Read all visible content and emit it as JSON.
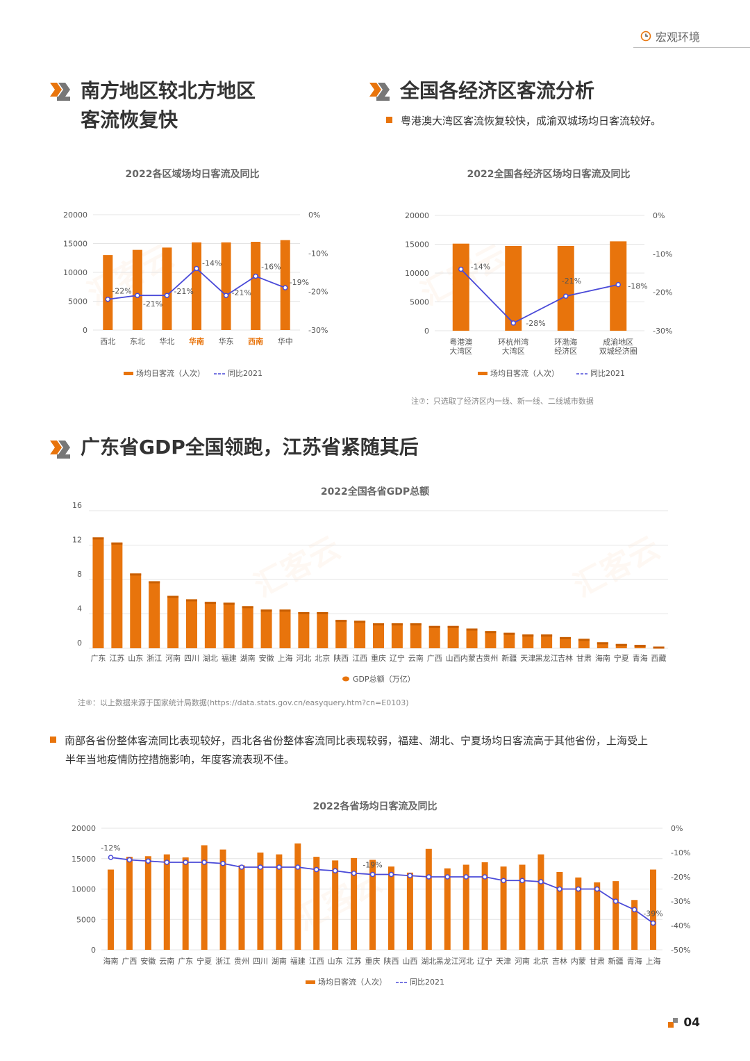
{
  "header": {
    "tag": "宏观环境"
  },
  "page_number": "04",
  "watermark": "汇客云",
  "section1": {
    "title_line1": "南方地区较北方地区",
    "title_line2": "客流恢复快"
  },
  "section2": {
    "title": "全国各经济区客流分析",
    "bullet": "粤港澳大湾区客流恢复较快，成渝双城场均日客流较好。"
  },
  "section3": {
    "title": "广东省GDP全国领跑，江苏省紧随其后"
  },
  "bullet4": {
    "line1": "南部各省份整体客流同比表现较好，西北各省份整体客流同比表现较弱，福建、湖北、宁夏场均日客流高于其他省份，上海受上",
    "line2": "半年当地疫情防控措施影响，年度客流表现不佳。"
  },
  "notes": {
    "note7": "注⑦：只选取了经济区内一线、新一线、二线城市数据",
    "note8": "注⑧：以上数据来源于国家统计局数据(https://data.stats.gov.cn/easyquery.htm?cn=E0103)"
  },
  "colors": {
    "bar": "#e8740c",
    "line": "#4a4ad8",
    "highlight": "#e8740c",
    "text": "#333333"
  },
  "chart_data": [
    {
      "id": "region",
      "type": "bar+line",
      "title": "2022各区域场均日客流及同比",
      "categories": [
        "西北",
        "东北",
        "华北",
        "华南",
        "华东",
        "西南",
        "华中"
      ],
      "highlight_categories": [
        "华南",
        "西南"
      ],
      "y_left": {
        "min": 0,
        "max": 20000,
        "ticks": [
          "0",
          "5000",
          "10000",
          "15000",
          "20000"
        ]
      },
      "y_right": {
        "min": -30,
        "max": 0,
        "ticks": [
          "0%",
          "-10%",
          "-20%",
          "-30%"
        ]
      },
      "series": [
        {
          "name": "场均日客流（人次）",
          "kind": "bar",
          "values": [
            13000,
            13900,
            14300,
            15200,
            15200,
            15300,
            15600
          ]
        },
        {
          "name": "同比2021",
          "kind": "line",
          "values": [
            -22,
            -21,
            -21,
            -14,
            -21,
            -16,
            -19
          ],
          "labels": [
            "-22%",
            "-21%",
            "-21%",
            "-14%",
            "-21%",
            "-16%",
            "-19%"
          ]
        }
      ]
    },
    {
      "id": "econ",
      "type": "bar+line",
      "title": "2022全国各经济区场均日客流及同比",
      "categories": [
        [
          "粤港澳",
          "大湾区"
        ],
        [
          "环杭州湾",
          "大湾区"
        ],
        [
          "环渤海",
          "经济区"
        ],
        [
          "成渝地区",
          "双城经济圈"
        ]
      ],
      "y_left": {
        "min": 0,
        "max": 20000,
        "ticks": [
          "0",
          "5000",
          "10000",
          "15000",
          "20000"
        ]
      },
      "y_right": {
        "min": -30,
        "max": 0,
        "ticks": [
          "0%",
          "-10%",
          "-20%",
          "-30%"
        ]
      },
      "series": [
        {
          "name": "场均日客流（人次）",
          "kind": "bar",
          "values": [
            15100,
            14700,
            14700,
            15500
          ]
        },
        {
          "name": "同比2021",
          "kind": "line",
          "values": [
            -14,
            -28,
            -21,
            -18
          ],
          "labels": [
            "-14%",
            "-28%",
            "-21%",
            "-18%"
          ]
        }
      ]
    },
    {
      "id": "gdp",
      "type": "bar",
      "title": "2022全国各省GDP总额",
      "categories": [
        "广东",
        "江苏",
        "山东",
        "浙江",
        "河南",
        "四川",
        "湖北",
        "福建",
        "湖南",
        "安徽",
        "上海",
        "河北",
        "北京",
        "陕西",
        "江西",
        "重庆",
        "辽宁",
        "云南",
        "广西",
        "山西",
        "内蒙古",
        "贵州",
        "新疆",
        "天津",
        "黑龙江",
        "吉林",
        "甘肃",
        "海南",
        "宁夏",
        "青海",
        "西藏"
      ],
      "y": {
        "min": 0,
        "max": 16,
        "ticks": [
          "0",
          "4",
          "8",
          "12",
          "16"
        ]
      },
      "series": [
        {
          "name": "GDP总额（万亿）",
          "values": [
            12.9,
            12.3,
            8.7,
            7.8,
            6.1,
            5.7,
            5.4,
            5.3,
            4.9,
            4.5,
            4.5,
            4.2,
            4.2,
            3.3,
            3.2,
            2.9,
            2.9,
            2.9,
            2.6,
            2.6,
            2.3,
            2.0,
            1.8,
            1.6,
            1.6,
            1.3,
            1.1,
            0.7,
            0.5,
            0.4,
            0.2
          ]
        }
      ]
    },
    {
      "id": "province",
      "type": "bar+line",
      "title": "2022各省场均日客流及同比",
      "categories": [
        "海南",
        "广西",
        "安徽",
        "云南",
        "广东",
        "宁夏",
        "浙江",
        "贵州",
        "四川",
        "湖南",
        "福建",
        "江西",
        "山东",
        "江苏",
        "重庆",
        "陕西",
        "山西",
        "湖北",
        "黑龙江",
        "河北",
        "辽宁",
        "天津",
        "河南",
        "北京",
        "吉林",
        "内蒙",
        "甘肃",
        "新疆",
        "青海",
        "上海"
      ],
      "y_left": {
        "min": 0,
        "max": 20000,
        "ticks": [
          "0",
          "5000",
          "10000",
          "15000",
          "20000"
        ]
      },
      "y_right": {
        "min": -50,
        "max": 0,
        "ticks": [
          "0%",
          "-10%",
          "-20%",
          "-30%",
          "-40%",
          "-50%"
        ]
      },
      "series": [
        {
          "name": "场均日客流（人次）",
          "kind": "bar",
          "values": [
            13200,
            15300,
            15400,
            15700,
            15200,
            17200,
            16500,
            13900,
            16000,
            15700,
            17500,
            15300,
            14700,
            15100,
            14800,
            13700,
            12700,
            16600,
            13400,
            14000,
            14400,
            13700,
            14000,
            15700,
            12800,
            11900,
            11100,
            11300,
            8200,
            13200
          ]
        },
        {
          "name": "同比2021",
          "kind": "line",
          "values": [
            -12,
            -13,
            -13.5,
            -14,
            -14,
            -14,
            -14.5,
            -16,
            -16,
            -16,
            -16,
            -17,
            -17.5,
            -18.5,
            -19,
            -19,
            -19.5,
            -20,
            -20,
            -20,
            -20,
            -21.5,
            -21.5,
            -22,
            -25,
            -25,
            -25,
            -30,
            -33.5,
            -39
          ]
        },
        {
          "labels": {
            "0": "-12%",
            "14": "-19%",
            "29": "-39%"
          }
        }
      ]
    }
  ]
}
